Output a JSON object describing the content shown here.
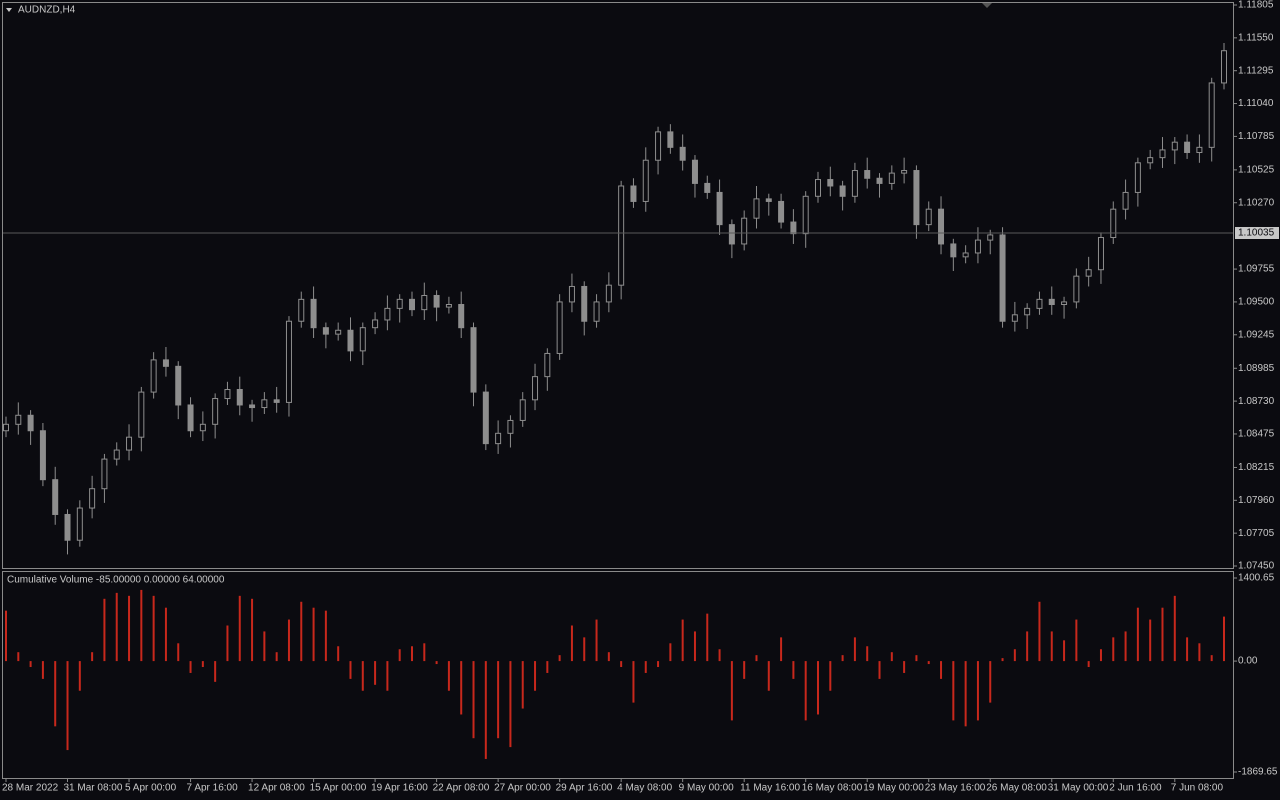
{
  "chart_data": [
    {
      "type": "candlestick",
      "title": "AUDNZD,H4",
      "color": "#8e8e8e",
      "categories": [
        "28 Mar 2022",
        null,
        null,
        null,
        null,
        "31 Mar 08:00",
        null,
        null,
        null,
        null,
        "5 Apr 00:00",
        null,
        null,
        null,
        null,
        "7 Apr 16:00",
        null,
        null,
        null,
        null,
        "12 Apr 08:00",
        null,
        null,
        null,
        null,
        "15 Apr 00:00",
        null,
        null,
        null,
        null,
        "19 Apr 16:00",
        null,
        null,
        null,
        null,
        "22 Apr 08:00",
        null,
        null,
        null,
        null,
        "27 Apr 00:00",
        null,
        null,
        null,
        null,
        "29 Apr 16:00",
        null,
        null,
        null,
        null,
        "4 May 08:00",
        null,
        null,
        null,
        null,
        "9 May 00:00",
        null,
        null,
        null,
        null,
        "11 May 16:00",
        null,
        null,
        null,
        null,
        "16 May 08:00",
        null,
        null,
        null,
        null,
        "19 May 00:00",
        null,
        null,
        null,
        null,
        "23 May 16:00",
        null,
        null,
        null,
        null,
        "26 May 08:00",
        null,
        null,
        null,
        null,
        "31 May 00:00",
        null,
        null,
        null,
        null,
        "2 Jun 16:00",
        null,
        null,
        null,
        null,
        "7 Jun 08:00",
        null,
        null,
        null,
        null
      ],
      "open": [
        1.085,
        1.0855,
        1.0862,
        1.085,
        1.0812,
        1.0785,
        1.0765,
        1.079,
        1.0805,
        1.0828,
        1.0835,
        1.0845,
        1.088,
        1.0905,
        1.09,
        1.087,
        1.085,
        1.0855,
        1.0875,
        1.0882,
        1.087,
        1.0868,
        1.0874,
        1.0872,
        1.0935,
        1.0952,
        1.093,
        1.0925,
        1.0928,
        1.0912,
        1.093,
        1.0936,
        1.0945,
        1.0952,
        1.0944,
        1.0955,
        1.0946,
        1.0948,
        1.093,
        1.088,
        1.084,
        1.0848,
        1.0858,
        1.0874,
        1.0892,
        1.091,
        1.095,
        1.0962,
        1.0935,
        1.095,
        1.0963,
        1.104,
        1.1028,
        1.106,
        1.1082,
        1.107,
        1.106,
        1.1042,
        1.1035,
        1.101,
        1.0995,
        1.1015,
        1.103,
        1.1028,
        1.1012,
        1.1003,
        1.1032,
        1.1045,
        1.104,
        1.1032,
        1.1052,
        1.1046,
        1.1042,
        1.105,
        1.1052,
        1.101,
        1.1022,
        1.0995,
        1.0985,
        1.0988,
        1.0998,
        1.1002,
        1.0935,
        1.094,
        1.0945,
        1.0952,
        1.0948,
        1.095,
        1.097,
        1.0975,
        1.1,
        1.1022,
        1.1035,
        1.1058,
        1.1062,
        1.1068,
        1.1074,
        1.1066,
        1.107,
        1.112
      ],
      "high": [
        1.0861,
        1.0872,
        1.0866,
        1.0856,
        1.0822,
        1.0789,
        1.0796,
        1.0815,
        1.0832,
        1.0841,
        1.0855,
        1.0884,
        1.0911,
        1.0915,
        1.0904,
        1.0876,
        1.0865,
        1.0879,
        1.0888,
        1.0892,
        1.0874,
        1.088,
        1.0884,
        1.0939,
        1.0958,
        1.0962,
        1.0934,
        1.0934,
        1.0938,
        1.0934,
        1.0942,
        1.0955,
        1.0956,
        1.0958,
        1.0965,
        1.0959,
        1.0954,
        1.0958,
        1.0934,
        1.0886,
        1.0858,
        1.0862,
        1.088,
        1.0902,
        1.0914,
        1.0956,
        1.0972,
        1.0966,
        1.0956,
        1.0973,
        1.1044,
        1.1046,
        1.107,
        1.1086,
        1.1088,
        1.108,
        1.1064,
        1.1048,
        1.1045,
        1.1014,
        1.1021,
        1.104,
        1.1034,
        1.1034,
        1.1022,
        1.1036,
        1.1051,
        1.1055,
        1.1044,
        1.1058,
        1.1062,
        1.105,
        1.1056,
        1.1062,
        1.1056,
        1.1028,
        1.1032,
        1.0999,
        1.0994,
        1.1008,
        1.1006,
        1.1008,
        1.095,
        1.0949,
        1.0958,
        1.0962,
        1.0954,
        1.0976,
        1.0985,
        1.1004,
        1.1028,
        1.1045,
        1.1062,
        1.1068,
        1.1078,
        1.1078,
        1.108,
        1.108,
        1.1124,
        1.1151
      ],
      "low": [
        1.0845,
        1.0847,
        1.0839,
        1.0807,
        1.0777,
        1.0754,
        1.076,
        1.0782,
        1.0794,
        1.0823,
        1.0827,
        1.0834,
        1.0875,
        1.0892,
        1.0859,
        1.0845,
        1.0842,
        1.0844,
        1.087,
        1.0862,
        1.0857,
        1.0863,
        1.0864,
        1.0861,
        1.093,
        1.0922,
        1.0914,
        1.092,
        1.0904,
        1.0901,
        1.0925,
        1.0928,
        1.0934,
        1.0939,
        1.0936,
        1.0935,
        1.0941,
        1.0922,
        1.0869,
        1.0835,
        1.0832,
        1.0837,
        1.0853,
        1.0866,
        1.0881,
        1.0905,
        1.0942,
        1.0924,
        1.093,
        1.0942,
        1.0952,
        1.1023,
        1.102,
        1.1049,
        1.1065,
        1.1052,
        1.1031,
        1.103,
        1.1002,
        1.0984,
        1.099,
        1.1007,
        1.1017,
        1.1007,
        1.0995,
        1.0992,
        1.1027,
        1.1032,
        1.1021,
        1.1027,
        1.1038,
        1.1031,
        1.1037,
        1.1042,
        1.0999,
        1.1005,
        1.0987,
        1.0974,
        1.098,
        1.098,
        1.0987,
        1.093,
        1.0927,
        1.0929,
        1.094,
        1.094,
        1.0937,
        1.0945,
        1.0962,
        1.0964,
        1.0995,
        1.1014,
        1.1024,
        1.1053,
        1.1054,
        1.1057,
        1.1061,
        1.1058,
        1.1059,
        1.1115
      ],
      "close": [
        1.0855,
        1.0862,
        1.085,
        1.0812,
        1.0785,
        1.0765,
        1.079,
        1.0805,
        1.0828,
        1.0835,
        1.0845,
        1.088,
        1.0905,
        1.09,
        1.087,
        1.085,
        1.0855,
        1.0875,
        1.0882,
        1.087,
        1.0868,
        1.0874,
        1.0872,
        1.0935,
        1.0952,
        1.093,
        1.0925,
        1.0928,
        1.0912,
        1.093,
        1.0936,
        1.0945,
        1.0952,
        1.0944,
        1.0955,
        1.0946,
        1.0948,
        1.093,
        1.088,
        1.084,
        1.0848,
        1.0858,
        1.0874,
        1.0892,
        1.091,
        1.095,
        1.0962,
        1.0935,
        1.095,
        1.0963,
        1.104,
        1.1028,
        1.106,
        1.1082,
        1.107,
        1.106,
        1.1042,
        1.1035,
        1.101,
        1.0995,
        1.1015,
        1.103,
        1.1028,
        1.1012,
        1.1003,
        1.1032,
        1.1045,
        1.104,
        1.1032,
        1.1052,
        1.1046,
        1.1042,
        1.105,
        1.1052,
        1.101,
        1.1022,
        1.0995,
        1.0985,
        1.0988,
        1.0998,
        1.1002,
        1.0935,
        1.094,
        1.0945,
        1.0952,
        1.0948,
        1.095,
        1.097,
        1.0975,
        1.1,
        1.1022,
        1.1035,
        1.1058,
        1.1062,
        1.1068,
        1.1074,
        1.1066,
        1.107,
        1.112,
        1.1145
      ],
      "price_line": 1.10035,
      "ylim": [
        1.0745,
        1.11805
      ],
      "yticks": [
        1.11805,
        {
          "value": 1.1155,
          "label": "1.11550"
        },
        1.11295,
        {
          "value": 1.1104,
          "label": "1.11040"
        },
        1.10785,
        1.10525,
        {
          "value": 1.1027,
          "label": "1.10270"
        },
        1.09755,
        {
          "value": 1.095,
          "label": "1.09500"
        },
        1.09245,
        1.08985,
        {
          "value": 1.0873,
          "label": "1.08730"
        },
        1.08475,
        1.08215,
        {
          "value": 1.0796,
          "label": "1.07960"
        },
        1.07705,
        {
          "value": 1.0745,
          "label": "1.07450"
        }
      ]
    },
    {
      "type": "bar",
      "title": "Cumulative Volume -85.00000 0.00000 64.00000",
      "color": "#c8281c",
      "values": [
        850,
        150,
        -100,
        -300,
        -1100,
        -1500,
        -500,
        150,
        1050,
        1150,
        1100,
        1200,
        1100,
        900,
        300,
        -200,
        -100,
        -350,
        600,
        1100,
        1050,
        500,
        150,
        700,
        1000,
        900,
        850,
        250,
        -300,
        -500,
        -400,
        -500,
        200,
        250,
        300,
        -50,
        -500,
        -900,
        -1300,
        -1650,
        -1300,
        -1450,
        -800,
        -500,
        -200,
        100,
        600,
        400,
        700,
        150,
        -100,
        -700,
        -200,
        -100,
        300,
        700,
        500,
        800,
        200,
        -1000,
        -300,
        100,
        -500,
        400,
        -300,
        -1000,
        -900,
        -500,
        100,
        400,
        250,
        -300,
        150,
        -200,
        100,
        -50,
        -300,
        -1000,
        -1100,
        -1000,
        -700,
        50,
        200,
        500,
        1000,
        500,
        350,
        700,
        -100,
        200,
        400,
        500,
        900,
        700,
        900,
        1100,
        400,
        300,
        100,
        750
      ],
      "ylim": [
        -1869.65,
        1400.65
      ],
      "yticks": [
        1400.65,
        {
          "value": 0,
          "label": "0.00"
        },
        -1869.65
      ]
    }
  ]
}
